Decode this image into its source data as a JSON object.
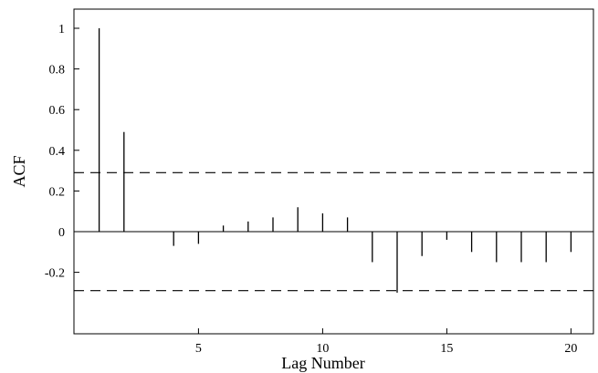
{
  "chart_data": {
    "type": "bar",
    "title": "",
    "xlabel": "Lag Number",
    "ylabel": "ACF",
    "xlim": [
      0,
      21
    ],
    "ylim": [
      -0.43,
      1.1
    ],
    "x_ticks": [
      5,
      10,
      15,
      20
    ],
    "x_tick_labels": [
      "5",
      "10",
      "15",
      "20"
    ],
    "y_ticks": [
      -0.2,
      0,
      0.2,
      0.4,
      0.6,
      0.8,
      1
    ],
    "y_tick_labels": [
      "-0.2",
      "0",
      "0.2",
      "0.4",
      "0.6",
      "0.8",
      "1"
    ],
    "grid": false,
    "confidence_limits": {
      "upper": 0.29,
      "lower": -0.29
    },
    "lags": [
      1,
      2,
      3,
      4,
      5,
      6,
      7,
      8,
      9,
      10,
      11,
      12,
      13,
      14,
      15,
      16,
      17,
      18,
      19,
      20
    ],
    "values": [
      1.0,
      0.49,
      0.0,
      -0.07,
      -0.06,
      0.03,
      0.05,
      0.07,
      0.12,
      0.09,
      0.07,
      -0.15,
      -0.3,
      -0.12,
      -0.04,
      -0.1,
      -0.15,
      -0.15,
      -0.15,
      -0.1
    ]
  }
}
